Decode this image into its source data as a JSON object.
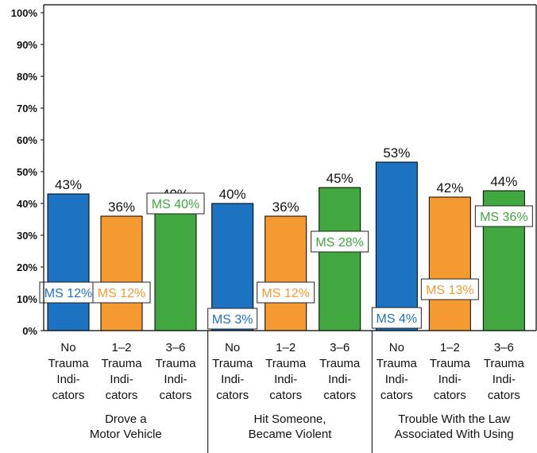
{
  "colors": {
    "no": "#1b73c1",
    "mid": "#f59a30",
    "high": "#40a83f",
    "axis": "#000000"
  },
  "chart_data": {
    "type": "bar",
    "ylim": [
      0,
      100
    ],
    "yticks": [
      "0%",
      "10%",
      "20%",
      "30%",
      "40%",
      "50%",
      "60%",
      "70%",
      "80%",
      "90%",
      "100%"
    ],
    "groups": [
      {
        "label": [
          "Drove a",
          "Motor Vehicle"
        ],
        "bars": [
          {
            "category": [
              "No",
              "Trauma",
              "Indi-",
              "cators"
            ],
            "value": 43,
            "value_label": "43%",
            "ms_label": "MS 12%",
            "ms_value": 12,
            "color_key": "no"
          },
          {
            "category": [
              "1–2",
              "Trauma",
              "Indi-",
              "cators"
            ],
            "value": 36,
            "value_label": "36%",
            "ms_label": "MS 12%",
            "ms_value": 12,
            "color_key": "mid"
          },
          {
            "category": [
              "3–6",
              "Trauma",
              "Indi-",
              "cators"
            ],
            "value": 40,
            "value_label": "40%",
            "ms_label": "MS 40%",
            "ms_value": 40,
            "color_key": "high"
          }
        ]
      },
      {
        "label": [
          "Hit Someone,",
          "Became Violent"
        ],
        "bars": [
          {
            "category": [
              "No",
              "Trauma",
              "Indi-",
              "cators"
            ],
            "value": 40,
            "value_label": "40%",
            "ms_label": "MS 3%",
            "ms_value": 3,
            "color_key": "no"
          },
          {
            "category": [
              "1–2",
              "Trauma",
              "Indi-",
              "cators"
            ],
            "value": 36,
            "value_label": "36%",
            "ms_label": "MS 12%",
            "ms_value": 12,
            "color_key": "mid"
          },
          {
            "category": [
              "3–6",
              "Trauma",
              "Indi-",
              "cators"
            ],
            "value": 45,
            "value_label": "45%",
            "ms_label": "MS 28%",
            "ms_value": 28,
            "color_key": "high"
          }
        ]
      },
      {
        "label": [
          "Trouble With the Law",
          "Associated With Using"
        ],
        "bars": [
          {
            "category": [
              "No",
              "Trauma",
              "Indi-",
              "cators"
            ],
            "value": 53,
            "value_label": "53%",
            "ms_label": "MS 4%",
            "ms_value": 4,
            "color_key": "no"
          },
          {
            "category": [
              "1–2",
              "Trauma",
              "Indi-",
              "cators"
            ],
            "value": 42,
            "value_label": "42%",
            "ms_label": "MS 13%",
            "ms_value": 13,
            "color_key": "mid"
          },
          {
            "category": [
              "3–6",
              "Trauma",
              "Indi-",
              "cators"
            ],
            "value": 44,
            "value_label": "44%",
            "ms_label": "MS 36%",
            "ms_value": 36,
            "color_key": "high"
          }
        ]
      }
    ]
  }
}
